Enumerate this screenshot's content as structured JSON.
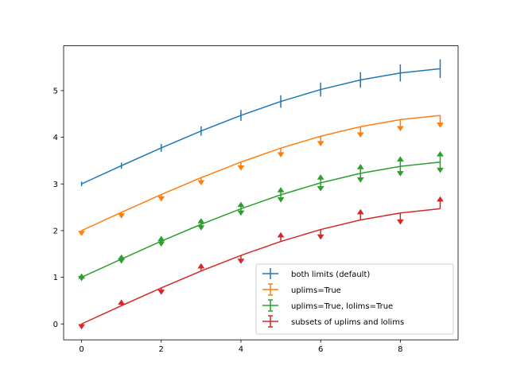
{
  "chart_data": {
    "type": "line",
    "title": "",
    "xlabel": "",
    "ylabel": "",
    "xlim": [
      -0.45,
      9.45
    ],
    "ylim": [
      -0.34,
      5.96
    ],
    "grid": false,
    "legend_position": "lower-right",
    "x": [
      0,
      1,
      2,
      3,
      4,
      5,
      6,
      7,
      8,
      9
    ],
    "x_ticks": [
      "0",
      "2",
      "4",
      "6",
      "8"
    ],
    "y_ticks": [
      "0",
      "1",
      "2",
      "3",
      "4",
      "5"
    ],
    "yerr": [
      0.05,
      0.067,
      0.083,
      0.1,
      0.117,
      0.133,
      0.15,
      0.167,
      0.183,
      0.2
    ],
    "series": [
      {
        "name": "both limits (default)",
        "color": "#1f77b4",
        "errorbar": "both",
        "values": [
          3.0,
          3.391,
          3.773,
          4.135,
          4.469,
          4.768,
          5.023,
          5.228,
          5.378,
          5.469
        ]
      },
      {
        "name": "uplims=True",
        "color": "#ff7f0e",
        "errorbar": "uplims",
        "values": [
          2.0,
          2.391,
          2.773,
          3.135,
          3.469,
          3.768,
          4.023,
          4.228,
          4.378,
          4.469
        ]
      },
      {
        "name": "uplims=True, lolims=True",
        "color": "#2ca02c",
        "errorbar": "uplims+lolims",
        "values": [
          1.0,
          1.391,
          1.773,
          2.135,
          2.469,
          2.768,
          3.023,
          3.228,
          3.378,
          3.469
        ]
      },
      {
        "name": "subsets of uplims and lolims",
        "color": "#d62728",
        "errorbar": "alternating",
        "values": [
          0.0,
          0.391,
          0.773,
          1.135,
          1.469,
          1.768,
          2.023,
          2.228,
          2.378,
          2.469
        ]
      }
    ]
  }
}
